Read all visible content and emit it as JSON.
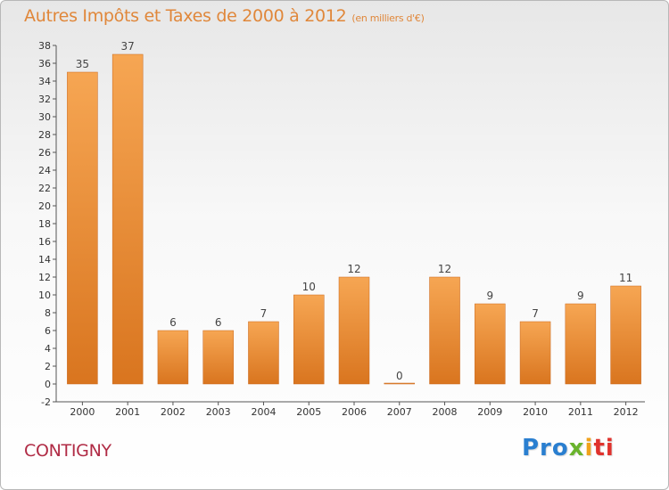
{
  "title": "Autres Impôts et Taxes de 2000 à 2012",
  "subtitle": "(en milliers d'€)",
  "commune": "CONTIGNY",
  "logo": {
    "p1": "Pro",
    "p2": "x",
    "p3": "i",
    "p4": "ti"
  },
  "colors": {
    "bar_light": "#f6a653",
    "bar_dark": "#d9751f",
    "bar_edge": "#c9661a",
    "title": "#e0873a",
    "commune": "#b02b45"
  },
  "chart_data": {
    "type": "bar",
    "title": "Autres Impôts et Taxes de 2000 à 2012",
    "subtitle": "(en milliers d'€)",
    "categories": [
      "2000",
      "2001",
      "2002",
      "2003",
      "2004",
      "2005",
      "2006",
      "2007",
      "2008",
      "2009",
      "2010",
      "2011",
      "2012"
    ],
    "values": [
      35,
      37,
      6,
      6,
      7,
      10,
      12,
      0,
      12,
      9,
      7,
      9,
      11
    ],
    "ylim": [
      -2,
      38
    ],
    "yticks": [
      -2,
      0,
      2,
      4,
      6,
      8,
      10,
      12,
      14,
      16,
      18,
      20,
      22,
      24,
      26,
      28,
      30,
      32,
      34,
      36,
      38
    ],
    "xlabel": "",
    "ylabel": "",
    "grid": false,
    "legend": "none"
  }
}
